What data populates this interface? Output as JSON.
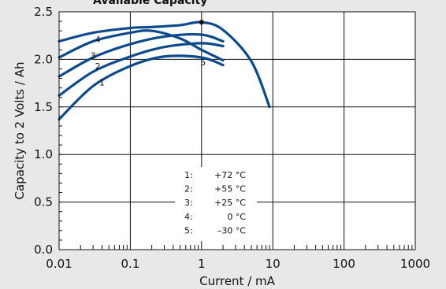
{
  "chart_data": {
    "type": "line",
    "title": "Available Capacity",
    "xlabel": "Current / mA",
    "ylabel": "Capacity to 2 Volts / Ah",
    "x_scale": "log",
    "xlim": [
      0.01,
      1000
    ],
    "ylim": [
      0,
      2.5
    ],
    "grid": true,
    "x_ticks": [
      "0.01",
      "0.1",
      "1",
      "10",
      "100",
      "1000"
    ],
    "y_ticks": [
      "0.0",
      "0.5",
      "1.0",
      "1.5",
      "2.0",
      "2.5"
    ],
    "line_color": "#0b4a8c",
    "series": [
      {
        "name": "1",
        "x": [
          0.01,
          0.03,
          0.1,
          0.3,
          1,
          2
        ],
        "y": [
          1.37,
          1.72,
          1.93,
          2.03,
          2.02,
          1.94
        ]
      },
      {
        "name": "2",
        "x": [
          0.01,
          0.03,
          0.1,
          0.3,
          1,
          2
        ],
        "y": [
          1.62,
          1.87,
          2.03,
          2.13,
          2.17,
          2.14
        ]
      },
      {
        "name": "3",
        "x": [
          0.01,
          0.03,
          0.1,
          0.3,
          1,
          2
        ],
        "y": [
          1.82,
          2.02,
          2.16,
          2.24,
          2.26,
          2.19
        ]
      },
      {
        "name": "4",
        "x": [
          0.01,
          0.03,
          0.1,
          0.2,
          0.5,
          1,
          2
        ],
        "y": [
          2.02,
          2.19,
          2.28,
          2.3,
          2.22,
          2.1,
          1.99
        ]
      },
      {
        "name": "5",
        "x": [
          0.01,
          0.03,
          0.1,
          0.2,
          0.5,
          1,
          2,
          5,
          9
        ],
        "y": [
          2.19,
          2.28,
          2.33,
          2.34,
          2.36,
          2.39,
          2.31,
          1.98,
          1.5
        ]
      }
    ],
    "marker": {
      "x": 1,
      "y": 2.39
    },
    "legend": {
      "placement": "bottom-center",
      "entries": [
        {
          "key": "1:",
          "value": "+72 °C"
        },
        {
          "key": "2:",
          "value": "+55 °C"
        },
        {
          "key": "3:",
          "value": "+25 °C"
        },
        {
          "key": "4:",
          "value": "0 °C"
        },
        {
          "key": "5:",
          "value": "–30 °C"
        }
      ]
    }
  }
}
